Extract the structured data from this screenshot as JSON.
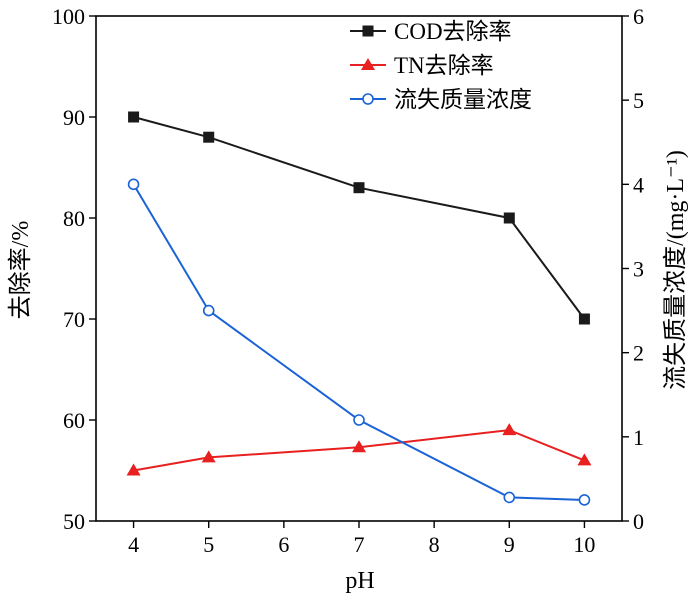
{
  "chart_data": {
    "type": "line",
    "xlabel": "pH",
    "ylabel_left": "去除率/%",
    "ylabel_right": "流失质量浓度/(mg·L⁻¹)",
    "x": [
      4,
      5,
      7,
      9,
      10
    ],
    "x_ticks": [
      4,
      5,
      6,
      7,
      8,
      9,
      10
    ],
    "xlim": [
      3.5,
      10.5
    ],
    "ylim_left": [
      50,
      100
    ],
    "yticks_left": [
      50,
      60,
      70,
      80,
      90,
      100
    ],
    "ylim_right": [
      0,
      6
    ],
    "yticks_right": [
      0,
      1,
      2,
      3,
      4,
      5,
      6
    ],
    "grid": false,
    "legend_position": "top-right",
    "series": [
      {
        "name": "COD去除率",
        "axis": "left",
        "color": "#1a1a1a",
        "marker": "square",
        "values": [
          90,
          88,
          83,
          80,
          70
        ]
      },
      {
        "name": "TN去除率",
        "axis": "left",
        "color": "#e8201f",
        "marker": "triangle",
        "values": [
          55,
          56.3,
          57.3,
          59,
          56
        ]
      },
      {
        "name": "流失质量浓度",
        "axis": "right",
        "color": "#1a63d6",
        "marker": "open-circle",
        "values": [
          4.0,
          2.5,
          1.2,
          0.28,
          0.25
        ]
      }
    ]
  }
}
